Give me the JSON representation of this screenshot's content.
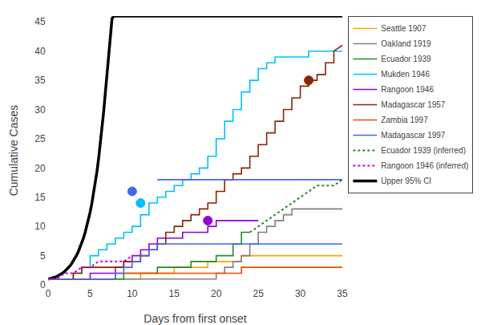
{
  "chart_data": {
    "type": "line",
    "x_label": "Days from first onset",
    "y_label": "Cumulative Cases",
    "xlim": [
      0,
      35
    ],
    "ylim": [
      0,
      46
    ],
    "xticks": [
      0,
      5,
      10,
      15,
      20,
      25,
      30,
      35
    ],
    "yticks": [
      0,
      5,
      10,
      15,
      20,
      25,
      30,
      35,
      40,
      45
    ],
    "grid": false,
    "series": [
      {
        "name": "Seattle 1907",
        "color": "#FFA500",
        "line_style": "solid",
        "x": [
          0,
          3,
          3,
          7,
          7,
          11,
          11,
          15,
          15,
          19,
          19,
          23,
          23,
          25,
          25,
          35
        ],
        "values": [
          1,
          1,
          1,
          1,
          1,
          1,
          2,
          2,
          3,
          3,
          4,
          4,
          5,
          5,
          5,
          5
        ]
      },
      {
        "name": "Oakland 1919",
        "color": "#808080",
        "line_style": "solid",
        "x": [
          0,
          20,
          20,
          21,
          21,
          22,
          22,
          23,
          23,
          24,
          24,
          25,
          25,
          26,
          26,
          27,
          27,
          28,
          28,
          29,
          29,
          30,
          30,
          35
        ],
        "values": [
          1,
          1,
          2,
          2,
          3,
          3,
          4,
          4,
          5,
          5,
          7,
          7,
          9,
          9,
          10,
          10,
          11,
          11,
          12,
          12,
          13,
          13,
          13,
          13
        ]
      },
      {
        "name": "Ecuador 1939",
        "color": "#228B22",
        "line_style": "solid",
        "x": [
          0,
          9,
          9,
          13,
          13,
          17,
          17,
          20,
          20,
          22,
          22,
          23,
          23,
          24
        ],
        "values": [
          1,
          1,
          2,
          2,
          3,
          3,
          4,
          4,
          5,
          5,
          7,
          7,
          9,
          9
        ]
      },
      {
        "name": "Mukden 1946",
        "color": "#00BFFF",
        "line_style": "solid",
        "x": [
          0,
          3,
          3,
          4,
          4,
          5,
          5,
          6,
          6,
          7,
          7,
          8,
          8,
          9,
          9,
          10,
          10,
          11,
          11,
          12,
          12,
          13,
          13,
          14,
          14,
          15,
          15,
          16,
          16,
          17,
          17,
          18,
          18,
          19,
          19,
          20,
          20,
          21,
          21,
          22,
          22,
          23,
          23,
          24,
          24,
          25,
          25,
          26,
          26,
          27,
          27,
          31,
          31,
          35
        ],
        "values": [
          1,
          1,
          2,
          2,
          3,
          3,
          5,
          5,
          6,
          6,
          7,
          7,
          8,
          8,
          9,
          9,
          10,
          10,
          12,
          12,
          14,
          14,
          15,
          15,
          16,
          16,
          17,
          17,
          18,
          18,
          19,
          19,
          20,
          20,
          22,
          22,
          25,
          25,
          28,
          28,
          30,
          30,
          33,
          33,
          35,
          35,
          37,
          37,
          38,
          38,
          39,
          39,
          40,
          40
        ],
        "circle": [
          11,
          14
        ]
      },
      {
        "name": "Rangoon 1946",
        "color": "#9400D3",
        "line_style": "solid",
        "x": [
          0,
          5,
          5,
          8,
          8,
          9,
          9,
          10,
          10,
          11,
          11,
          12,
          12,
          13,
          13,
          16,
          16,
          19,
          19,
          20,
          20,
          25
        ],
        "values": [
          1,
          1,
          2,
          2,
          3,
          3,
          4,
          4,
          5,
          5,
          6,
          6,
          7,
          7,
          8,
          8,
          9,
          9,
          10,
          10,
          11,
          11
        ],
        "circle": [
          19,
          11
        ]
      },
      {
        "name": "Madagascar 1957",
        "color": "#8B2500",
        "line_style": "solid",
        "x": [
          0,
          3,
          3,
          4,
          4,
          9,
          9,
          11,
          11,
          12,
          12,
          13,
          13,
          14,
          14,
          15,
          15,
          16,
          16,
          17,
          17,
          18,
          18,
          19,
          19,
          20,
          20,
          21,
          21,
          22,
          22,
          23,
          23,
          24,
          24,
          25,
          25,
          26,
          26,
          27,
          27,
          28,
          28,
          29,
          29,
          30,
          30,
          31,
          31,
          32,
          32,
          33,
          33,
          34,
          34,
          35
        ],
        "values": [
          1,
          1,
          2,
          2,
          3,
          3,
          4,
          4,
          5,
          5,
          6,
          6,
          7,
          7,
          9,
          9,
          10,
          10,
          11,
          11,
          12,
          12,
          13,
          13,
          14,
          14,
          16,
          16,
          18,
          18,
          19,
          19,
          20,
          20,
          22,
          22,
          24,
          24,
          26,
          26,
          28,
          28,
          30,
          30,
          32,
          32,
          34,
          34,
          35,
          35,
          36,
          36,
          38,
          38,
          40,
          41
        ],
        "circle": [
          31,
          35
        ]
      },
      {
        "name": "Zambia 1997",
        "color": "#FF4500",
        "line_style": "solid",
        "x": [
          0,
          8,
          8,
          23,
          23,
          35
        ],
        "values": [
          1,
          1,
          2,
          2,
          3,
          3
        ]
      },
      {
        "name": "Madagascar 1997",
        "color": "#4169E1",
        "line_style": "solid",
        "x": [
          0,
          8,
          8,
          9,
          9,
          10,
          10,
          11,
          11,
          12,
          12,
          13,
          13,
          35,
          13,
          13,
          35
        ],
        "values": [
          1,
          1,
          2,
          2,
          3,
          3,
          4,
          4,
          5,
          5,
          6,
          6,
          7,
          7,
          null,
          18,
          18
        ],
        "circle": [
          10,
          16
        ]
      },
      {
        "name": "Ecuador 1939 (inferred)",
        "color": "#228B22",
        "line_style": "dotted",
        "x": [
          24,
          25,
          26,
          27,
          28,
          29,
          30,
          31,
          32,
          33,
          34,
          35
        ],
        "values": [
          9,
          10,
          11,
          12,
          13,
          14,
          15,
          16,
          17,
          17,
          17,
          18
        ]
      },
      {
        "name": "Rangoon 1946 (inferred)",
        "color": "#CC00CC",
        "line_style": "dotted",
        "x": [
          0,
          1,
          2,
          3,
          4,
          5,
          6,
          7,
          8,
          9,
          10
        ],
        "values": [
          1,
          1,
          2,
          2,
          3,
          3,
          4,
          4,
          4,
          4,
          5
        ]
      },
      {
        "name": "Upper 95% CI",
        "color": "#000000",
        "line_style": "thick",
        "x": [
          0,
          0.2,
          0.4,
          0.6,
          0.8,
          1.0,
          1.2,
          1.4,
          1.6,
          1.8,
          2.0,
          2.2,
          2.4,
          2.6,
          2.8,
          3.0,
          3.2,
          3.4,
          3.6,
          3.8,
          4.0,
          4.2,
          4.4,
          4.6,
          4.8,
          5.0,
          5.2,
          5.4,
          5.6,
          5.8,
          6.0,
          6.2,
          6.4,
          6.6,
          6.8,
          7.0,
          7.2,
          7.4,
          7.6,
          7.8,
          8.0,
          8.5,
          9.0,
          9.5,
          10.0,
          35
        ],
        "values": [
          1,
          1.05,
          1.12,
          1.2,
          1.3,
          1.42,
          1.56,
          1.72,
          1.9,
          2.1,
          2.35,
          2.62,
          2.92,
          3.26,
          3.64,
          4.07,
          4.55,
          5.1,
          5.7,
          6.38,
          7.14,
          7.98,
          8.93,
          9.98,
          11.15,
          12.45,
          13.9,
          15.5,
          17.3,
          19.3,
          21.5,
          23.9,
          26.6,
          29.5,
          32.7,
          36.0,
          39.5,
          43.0,
          45.5,
          46.0,
          46.0,
          46.0,
          46.0,
          46.0,
          46.0,
          46.0
        ]
      }
    ]
  }
}
